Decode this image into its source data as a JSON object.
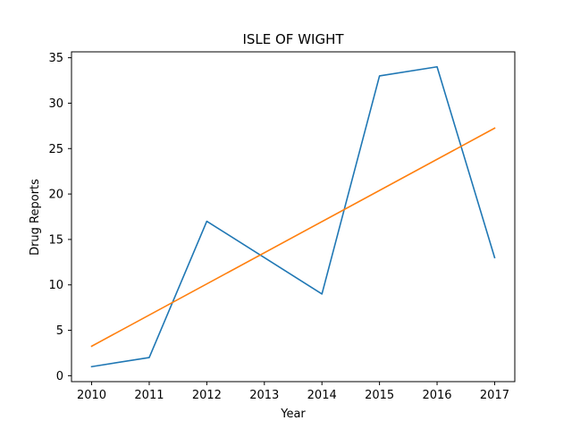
{
  "chart_data": {
    "type": "line",
    "title": "ISLE OF WIGHT",
    "xlabel": "Year",
    "ylabel": "Drug Reports",
    "x": [
      2010,
      2011,
      2012,
      2013,
      2014,
      2015,
      2016,
      2017
    ],
    "xticks": [
      "2010",
      "2011",
      "2012",
      "2013",
      "2014",
      "2015",
      "2016",
      "2017"
    ],
    "yticks": [
      "0",
      "5",
      "10",
      "15",
      "20",
      "25",
      "30",
      "35"
    ],
    "xlim": [
      2009.65,
      2017.35
    ],
    "ylim": [
      -0.65,
      35.65
    ],
    "grid": false,
    "series": [
      {
        "color": "#1f77b4",
        "values": [
          1,
          2,
          17,
          null,
          9,
          33,
          34,
          13
        ],
        "points": [
          [
            2010,
            1
          ],
          [
            2011,
            2
          ],
          [
            2012,
            17
          ],
          [
            2014,
            9
          ],
          [
            2015,
            33
          ],
          [
            2016,
            34
          ],
          [
            2017,
            13
          ]
        ]
      },
      {
        "color": "#ff7f0e",
        "values": [
          3.25,
          6.68,
          10.11,
          13.54,
          16.96,
          20.39,
          23.82,
          27.25
        ],
        "points": [
          [
            2010,
            3.25
          ],
          [
            2017,
            27.25
          ]
        ]
      }
    ]
  }
}
